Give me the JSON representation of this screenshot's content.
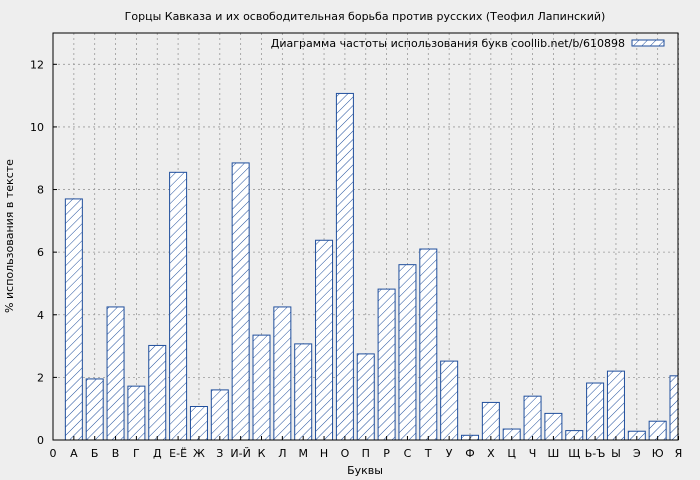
{
  "chart_data": {
    "type": "bar",
    "title": "Горцы Кавказа и их освободительная борьба против русских (Теофил Лапинский)",
    "xlabel": "Буквы",
    "ylabel": "% использования в тексте",
    "legend": "Диаграмма частоты использования букв coollib.net/b/610898",
    "legend_position": "top-right",
    "grid": true,
    "ylim": [
      0,
      13
    ],
    "yticks": [
      0,
      2,
      4,
      6,
      8,
      10,
      12
    ],
    "x_start_label": "0",
    "categories": [
      "А",
      "Б",
      "В",
      "Г",
      "Д",
      "Е-Ё",
      "Ж",
      "З",
      "И-Й",
      "К",
      "Л",
      "М",
      "Н",
      "О",
      "П",
      "Р",
      "С",
      "Т",
      "У",
      "Ф",
      "Х",
      "Ц",
      "Ч",
      "Ш",
      "Щ",
      "Ь-Ъ",
      "Ы",
      "Э",
      "Ю",
      "Я"
    ],
    "values": [
      7.7,
      1.95,
      4.25,
      1.72,
      3.02,
      8.55,
      1.07,
      1.6,
      8.85,
      3.35,
      4.25,
      3.07,
      6.38,
      11.07,
      2.75,
      4.82,
      5.6,
      6.1,
      2.52,
      0.15,
      1.2,
      0.35,
      1.4,
      0.85,
      0.3,
      1.82,
      2.2,
      0.28,
      0.6,
      2.05
    ],
    "colors": {
      "bar_stroke": "#1f4e9c",
      "background": "#eeeeee"
    }
  }
}
